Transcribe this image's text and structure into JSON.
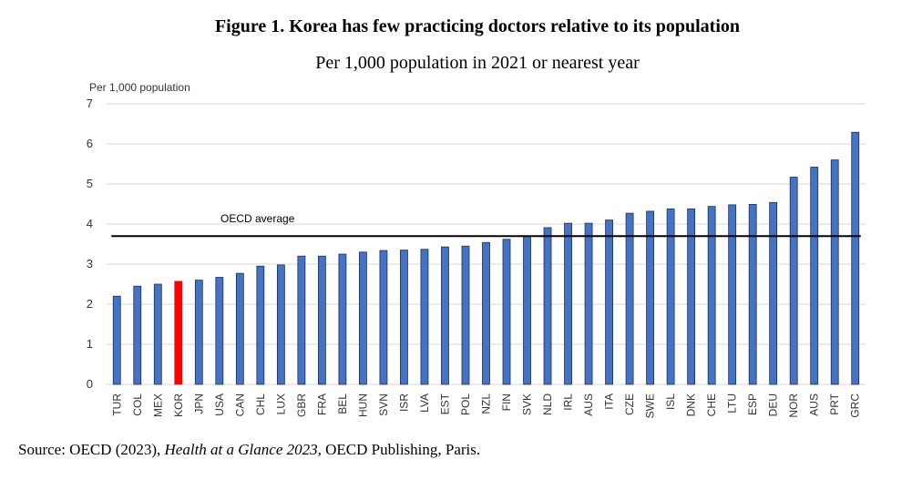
{
  "title": "Figure 1. Korea has few practicing doctors relative to its population",
  "subtitle": "Per 1,000 population in 2021 or nearest year",
  "source": {
    "prefix": "Source: OECD (2023), ",
    "italic": "Health at a Glance 2023",
    "suffix": ", OECD Publishing, Paris."
  },
  "chart_data": {
    "type": "bar",
    "ylabel": "Per 1,000 population",
    "ylim": [
      0,
      7
    ],
    "yticks": [
      0,
      1,
      2,
      3,
      4,
      5,
      6,
      7
    ],
    "grid": true,
    "categories": [
      "TUR",
      "COL",
      "MEX",
      "KOR",
      "JPN",
      "USA",
      "CAN",
      "CHL",
      "LUX",
      "GBR",
      "FRA",
      "BEL",
      "HUN",
      "SVN",
      "ISR",
      "LVA",
      "EST",
      "POL",
      "NZL",
      "FIN",
      "SVK",
      "NLD",
      "IRL",
      "AUS",
      "ITA",
      "CZE",
      "SWE",
      "ISL",
      "DNK",
      "CHE",
      "LTU",
      "ESP",
      "DEU",
      "NOR",
      "AUS",
      "PRT",
      "GRC"
    ],
    "values": [
      2.2,
      2.45,
      2.5,
      2.57,
      2.6,
      2.67,
      2.77,
      2.95,
      2.98,
      3.2,
      3.2,
      3.25,
      3.3,
      3.34,
      3.35,
      3.37,
      3.43,
      3.45,
      3.54,
      3.62,
      3.7,
      3.91,
      4.02,
      4.02,
      4.1,
      4.27,
      4.32,
      4.38,
      4.38,
      4.44,
      4.48,
      4.49,
      4.54,
      5.17,
      5.42,
      5.6,
      6.29
    ],
    "highlight": "KOR",
    "colors": {
      "bar": "#4472C4",
      "bar_outline": "#1F2D50",
      "highlight": "#FF0000",
      "grid": "#D9D9D9",
      "reference_line": "#000000"
    },
    "reference_line": {
      "label": "OECD average",
      "value": 3.7
    }
  }
}
